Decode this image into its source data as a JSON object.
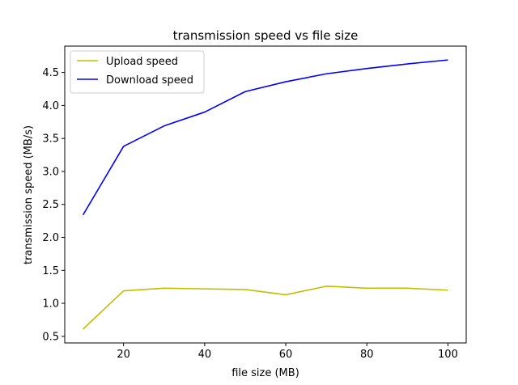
{
  "chart_data": {
    "type": "line",
    "title": "transmission speed vs file size",
    "xlabel": "file size (MB)",
    "ylabel": "transmission speed (MB/s)",
    "x": [
      10,
      20,
      30,
      40,
      50,
      60,
      70,
      80,
      90,
      100
    ],
    "series": [
      {
        "name": "Upload speed",
        "color": "#bfbf00",
        "values": [
          0.61,
          1.19,
          1.23,
          1.22,
          1.21,
          1.13,
          1.26,
          1.23,
          1.23,
          1.2
        ]
      },
      {
        "name": "Download speed",
        "color": "#0000ff",
        "values": [
          2.34,
          3.38,
          3.69,
          3.9,
          4.21,
          4.36,
          4.48,
          4.56,
          4.63,
          4.69
        ]
      }
    ],
    "xlim": [
      5.5,
      104.5
    ],
    "ylim": [
      0.4,
      4.9
    ],
    "xticks": [
      20,
      40,
      60,
      80,
      100
    ],
    "yticks": [
      0.5,
      1.0,
      1.5,
      2.0,
      2.5,
      3.0,
      3.5,
      4.0,
      4.5
    ],
    "xtick_labels": [
      "20",
      "40",
      "60",
      "80",
      "100"
    ],
    "ytick_labels": [
      "0.5",
      "1.0",
      "1.5",
      "2.0",
      "2.5",
      "3.0",
      "3.5",
      "4.0",
      "4.5"
    ],
    "grid": false,
    "legend_position": "upper-left"
  }
}
